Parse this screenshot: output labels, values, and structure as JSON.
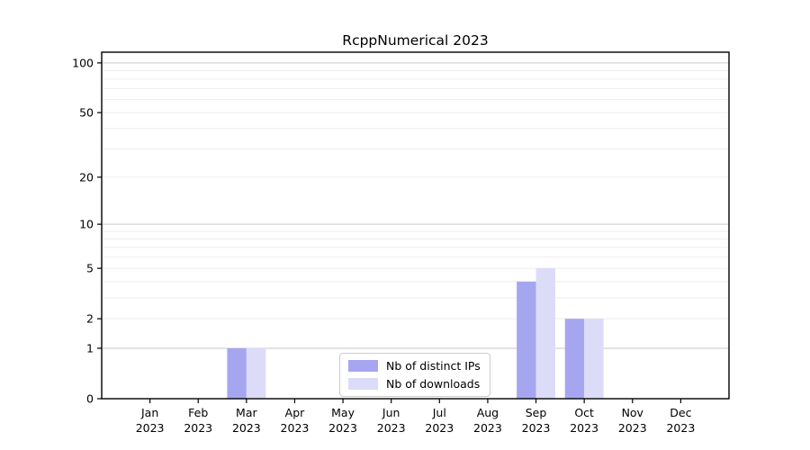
{
  "title": "RcppNumerical 2023",
  "legend": {
    "items": [
      {
        "id": "distinct-ips",
        "label": "Nb of distinct IPs",
        "color": "#a6a6f0"
      },
      {
        "id": "downloads",
        "label": "Nb of downloads",
        "color": "#dcdcf8"
      }
    ]
  },
  "colors": {
    "bar_distinct_ips": "#a6a6f0",
    "bar_downloads": "#dcdcf8",
    "grid_minor": "#ededed",
    "grid_major": "#c9c9c9",
    "axis": "#000000",
    "text": "#000000",
    "legend_border": "#cccccc",
    "background": "#ffffff"
  },
  "chart_data": {
    "type": "bar",
    "title": "RcppNumerical 2023",
    "categories": [
      "Jan 2023",
      "Feb 2023",
      "Mar 2023",
      "Apr 2023",
      "May 2023",
      "Jun 2023",
      "Jul 2023",
      "Aug 2023",
      "Sep 2023",
      "Oct 2023",
      "Nov 2023",
      "Dec 2023"
    ],
    "series": [
      {
        "name": "Nb of distinct IPs",
        "color": "#a6a6f0",
        "values": [
          0,
          0,
          1,
          0,
          0,
          0,
          0,
          0,
          4,
          2,
          0,
          0
        ]
      },
      {
        "name": "Nb of downloads",
        "color": "#dcdcf8",
        "values": [
          0,
          0,
          1,
          0,
          0,
          0,
          0,
          0,
          5,
          2,
          0,
          0
        ]
      }
    ],
    "xlabel": "",
    "ylabel": "",
    "yscale": "log1p",
    "ylim": [
      0,
      116
    ],
    "yticks": [
      0,
      1,
      2,
      5,
      10,
      20,
      50,
      100
    ],
    "grid_minor_values": [
      2,
      3,
      4,
      5,
      6,
      7,
      8,
      9,
      20,
      30,
      40,
      50,
      60,
      70,
      80,
      90
    ],
    "grid_major_values": [
      1,
      10,
      100
    ],
    "grid": "horizontal",
    "legend_position": "lower center inside"
  }
}
